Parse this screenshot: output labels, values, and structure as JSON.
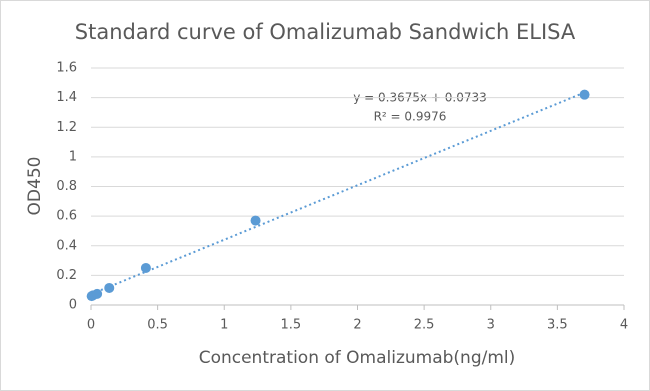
{
  "chart_data": {
    "type": "scatter",
    "title": "Standard curve of Omalizumab Sandwich ELISA",
    "x_label": "Concentration of Omalizumab(ng/ml)",
    "y_label": "OD450",
    "series": [
      {
        "name": "OD450",
        "color": "#5b9bd5",
        "x": [
          0.005,
          0.015,
          0.046,
          0.137,
          0.412,
          1.235,
          3.704
        ],
        "values": [
          0.06,
          0.065,
          0.075,
          0.115,
          0.25,
          0.57,
          1.42
        ]
      }
    ],
    "trendline": {
      "slope": 0.3675,
      "intercept": 0.0733,
      "color": "#5b9bd5"
    },
    "annotations": [
      "y = 0.3675x + 0.0733",
      "R² = 0.9976"
    ],
    "xlim": [
      0,
      4
    ],
    "xticks": [
      0,
      0.5,
      1,
      1.5,
      2,
      2.5,
      3,
      3.5,
      4
    ],
    "ylim": [
      0,
      1.6
    ],
    "yticks": [
      0,
      0.2,
      0.4,
      0.6,
      0.8,
      1,
      1.2,
      1.4,
      1.6
    ],
    "grid": true
  }
}
